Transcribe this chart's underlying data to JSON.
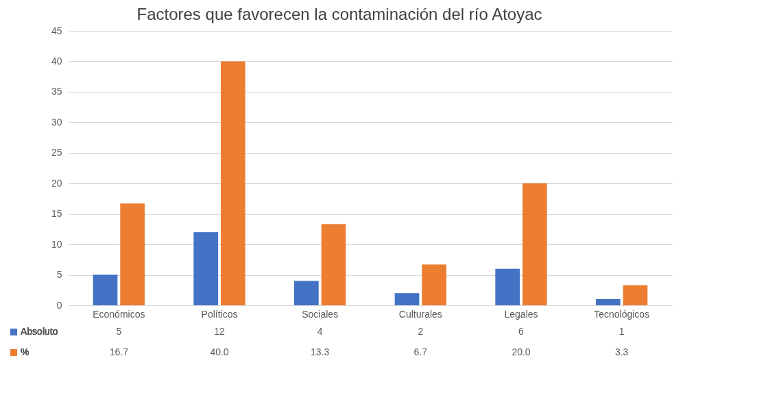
{
  "chart_data": {
    "type": "bar",
    "title": "Factores que favorecen la contaminación del río Atoyac",
    "categories": [
      "Económicos",
      "Políticos",
      "Sociales",
      "Culturales",
      "Legales",
      "Tecnológicos"
    ],
    "series": [
      {
        "name": "Absoluto",
        "color": "#4472c4",
        "values": [
          5,
          12,
          4,
          2,
          6,
          1
        ],
        "value_labels": [
          "5",
          "12",
          "4",
          "2",
          "6",
          "1"
        ]
      },
      {
        "name": "%",
        "color": "#ed7d31",
        "values": [
          16.7,
          40.0,
          13.3,
          6.7,
          20.0,
          3.3
        ],
        "value_labels": [
          "16.7",
          "40.0",
          "13.3",
          "6.7",
          "20.0",
          "3.3"
        ]
      }
    ],
    "ylim": [
      0,
      45
    ],
    "yticks": [
      0,
      5,
      10,
      15,
      20,
      25,
      30,
      35,
      40,
      45
    ],
    "grid": "y",
    "legend": "bottom"
  }
}
